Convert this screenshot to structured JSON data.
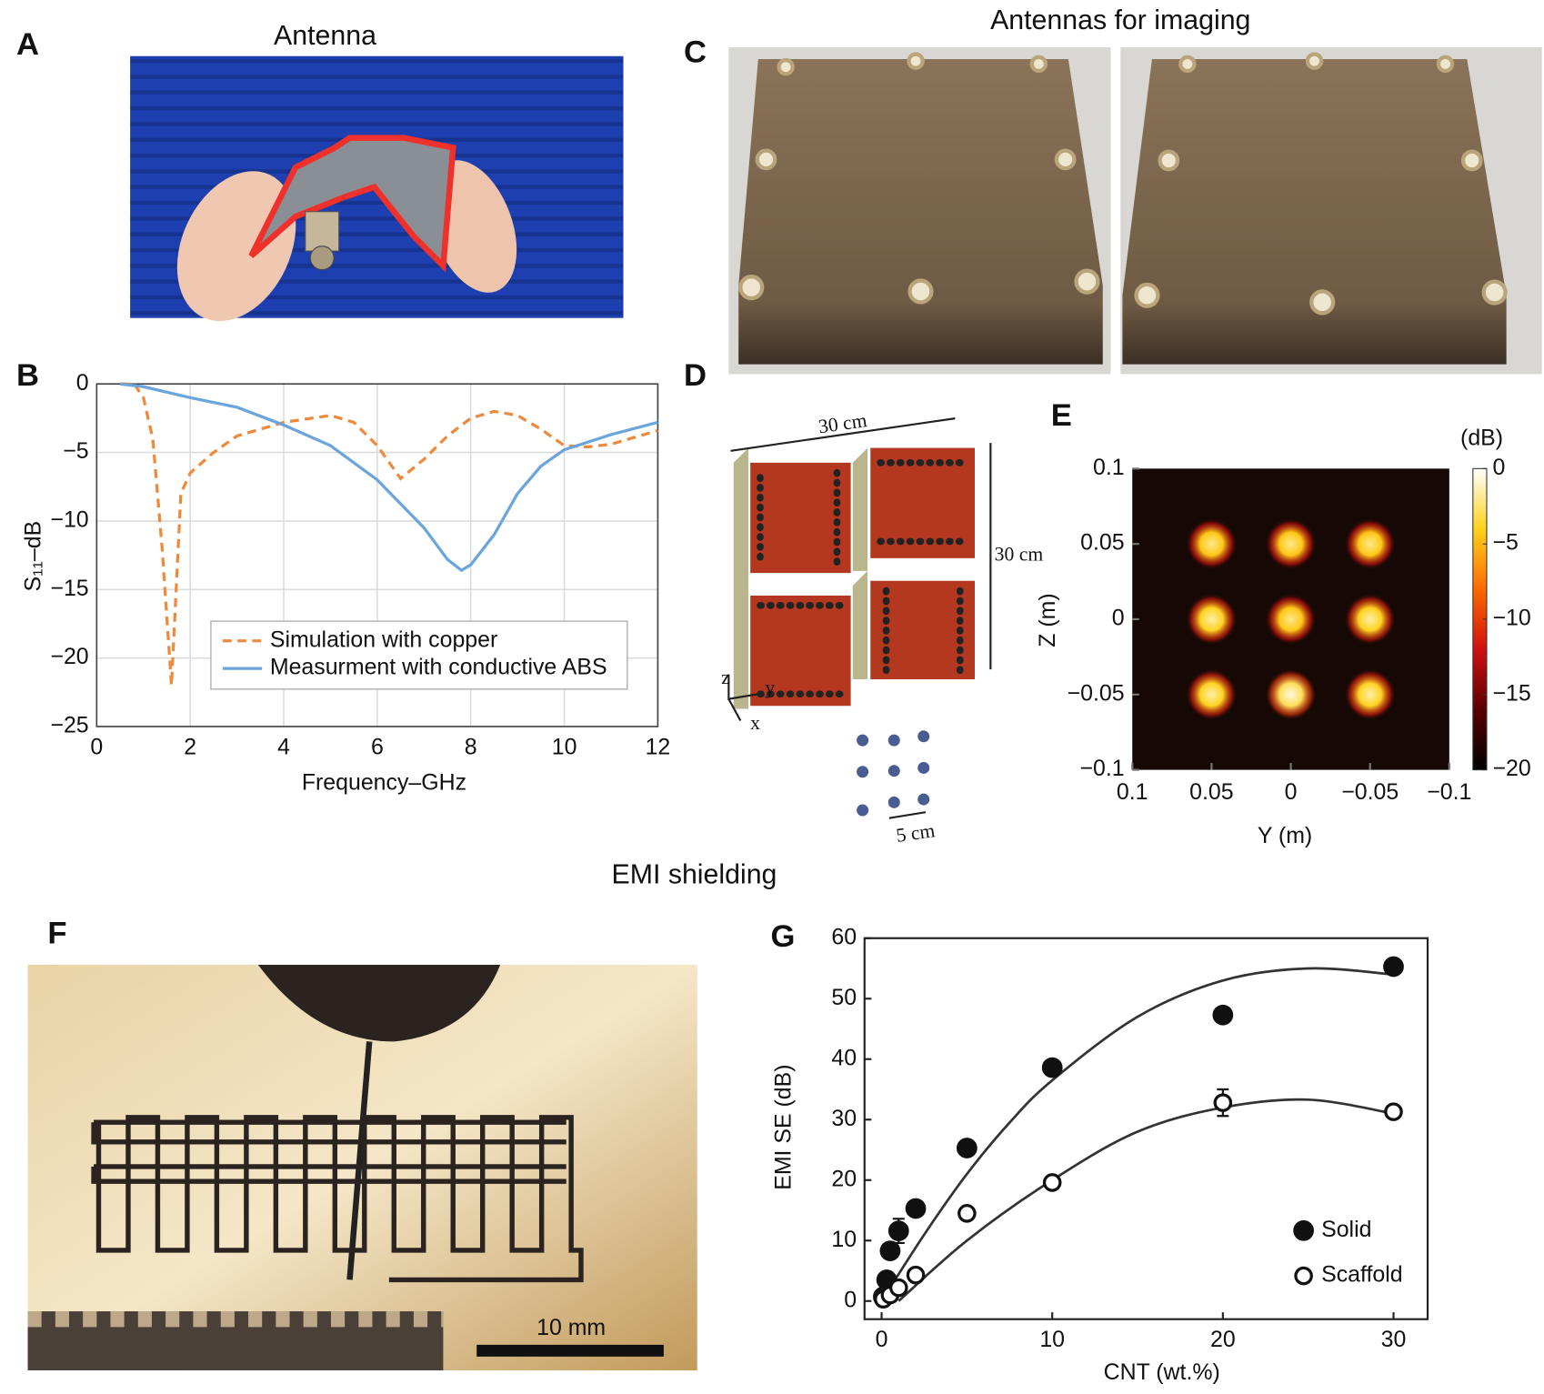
{
  "figure": {
    "panel_labels": [
      "A",
      "B",
      "C",
      "D",
      "E",
      "F",
      "G"
    ],
    "antenna_title": "Antenna",
    "imaging_title": "Antennas for imaging",
    "emi_title": "EMI shielding",
    "diagram": {
      "width_label": "30 cm",
      "height_label": "30 cm",
      "spacing_label": "5 cm",
      "axis_z": "z",
      "axis_y": "y",
      "axis_x": "x"
    },
    "scale_bar": "10 mm"
  },
  "chart_data": [
    {
      "type": "line",
      "xlabel": "Frequency–GHz",
      "ylabel": "S₁₁–dB",
      "xlim": [
        0,
        12
      ],
      "xticks": [
        0,
        2,
        4,
        6,
        8,
        10,
        12
      ],
      "ylim": [
        -25,
        0
      ],
      "yticks": [
        0,
        {
          "value": -5,
          "label": "−5"
        },
        {
          "value": -10,
          "label": "−10"
        },
        {
          "value": -15,
          "label": "−15"
        },
        {
          "value": -20,
          "label": "−20"
        },
        {
          "value": -25,
          "label": "−25"
        }
      ],
      "grid": true,
      "legend": "lower center",
      "series": [
        {
          "name": "Simulation with copper",
          "color": "#ee8a3c",
          "dash": true,
          "x": [
            0.5,
            0.8,
            1.0,
            1.2,
            1.4,
            1.6,
            1.7,
            1.8,
            2.0,
            2.5,
            3,
            4,
            5,
            5.5,
            6,
            6.5,
            7,
            7.5,
            8,
            8.5,
            9,
            9.5,
            10,
            10.5,
            11,
            12
          ],
          "values": [
            0,
            0,
            -1,
            -4,
            -12,
            -22,
            -15,
            -8,
            -6.5,
            -5,
            -3.8,
            -2.8,
            -2.3,
            -2.8,
            -4.5,
            -6.9,
            -5.5,
            -3.8,
            -2.5,
            -2.0,
            -2.3,
            -3.3,
            -4.5,
            -4.6,
            -4.4,
            -3.4
          ]
        },
        {
          "name": "Measurment with conductive ABS",
          "color": "#6aa5dc",
          "dash": false,
          "x": [
            0.5,
            1,
            1.5,
            2,
            3,
            4,
            5,
            6,
            7,
            7.5,
            7.8,
            8,
            8.5,
            9,
            9.5,
            10,
            11,
            12
          ],
          "values": [
            0,
            -0.2,
            -0.6,
            -1.0,
            -1.7,
            -3.0,
            -4.5,
            -7,
            -10.5,
            -12.8,
            -13.6,
            -13.2,
            -11,
            -8,
            -6,
            -4.8,
            -3.7,
            -2.8
          ]
        }
      ]
    },
    {
      "type": "heatmap",
      "xlabel": "Y (m)",
      "ylabel": "Z (m)",
      "xlim": [
        0.1,
        -0.1
      ],
      "xticks": [
        0.1,
        0.05,
        0,
        {
          "value": -0.05,
          "label": "−0.05"
        },
        {
          "value": -0.1,
          "label": "−0.1"
        }
      ],
      "ylim": [
        -0.1,
        0.1
      ],
      "yticks": [
        0.1,
        0.05,
        0,
        {
          "value": -0.05,
          "label": "−0.05"
        },
        {
          "value": -0.1,
          "label": "−0.1"
        }
      ],
      "x": [
        0.05,
        0,
        -0.05,
        0.05,
        0,
        -0.05,
        0.05,
        0,
        -0.05
      ],
      "y": [
        0.05,
        0.05,
        0.05,
        0,
        0,
        0,
        -0.05,
        -0.05,
        -0.05
      ],
      "values": [
        -2,
        -2,
        -2,
        -1.5,
        -2,
        -1.5,
        -1.5,
        -0.5,
        -1.5
      ],
      "colorbar_label": "(dB)",
      "clim": [
        -20,
        0
      ],
      "cticks": [
        0,
        {
          "value": -5,
          "label": "−5"
        },
        {
          "value": -10,
          "label": "−10"
        },
        {
          "value": -15,
          "label": "−15"
        },
        {
          "value": -20,
          "label": "−20"
        }
      ],
      "colormap": [
        "#000000",
        "#5a0000",
        "#d01010",
        "#ff6a00",
        "#ffd21a",
        "#ffffff"
      ]
    },
    {
      "type": "scatter",
      "xlabel": "CNT (wt.%)",
      "ylabel": "EMI SE (dB)",
      "xlim": [
        -1,
        32
      ],
      "xticks": [
        0,
        10,
        20,
        30
      ],
      "ylim": [
        -3,
        60
      ],
      "yticks": [
        0,
        10,
        20,
        30,
        40,
        50,
        60
      ],
      "legend": "lower right",
      "series": [
        {
          "name": "Solid",
          "color": "#111111",
          "marker": "filled",
          "x": [
            0.1,
            0.3,
            0.5,
            1,
            2,
            5,
            10,
            20,
            30
          ],
          "values": [
            0.7,
            3.5,
            8.3,
            11.6,
            15.3,
            25.3,
            38.6,
            47.3,
            55.3
          ],
          "errors": [
            0.5,
            0.5,
            0.5,
            2,
            0.5,
            0.5,
            0.5,
            0.5,
            0.5
          ],
          "fit_x": [
            0,
            2.5,
            5,
            7.5,
            10,
            15,
            20,
            25,
            30
          ],
          "fit_values": [
            0,
            11,
            21,
            29.5,
            36.5,
            47,
            53,
            55,
            54
          ]
        },
        {
          "name": "Scaffold",
          "color": "#111111",
          "marker": "open",
          "x": [
            0.1,
            0.5,
            1,
            2,
            5,
            10,
            20,
            30
          ],
          "values": [
            0.3,
            1.0,
            2.2,
            4.3,
            14.5,
            19.6,
            32.8,
            31.3
          ],
          "errors": [
            0.5,
            0.5,
            0.5,
            0.5,
            1,
            1,
            2.2,
            0.7
          ],
          "fit_x": [
            1,
            5,
            10,
            15,
            20,
            25,
            30
          ],
          "fit_values": [
            0,
            10,
            20,
            28,
            32,
            33.3,
            31
          ]
        }
      ]
    }
  ]
}
